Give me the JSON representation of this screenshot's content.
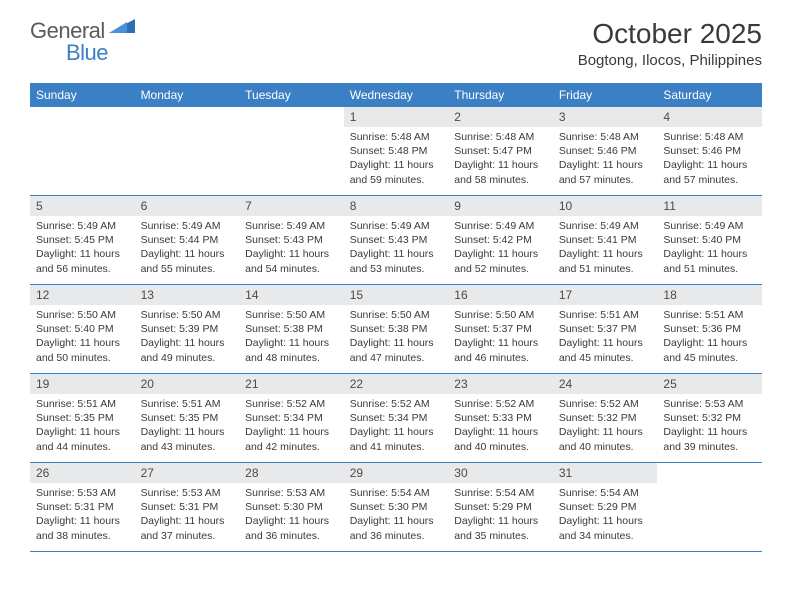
{
  "brand": {
    "part1": "General",
    "part2": "Blue"
  },
  "title": "October 2025",
  "location": "Bogtong, Ilocos, Philippines",
  "weekdays": [
    "Sunday",
    "Monday",
    "Tuesday",
    "Wednesday",
    "Thursday",
    "Friday",
    "Saturday"
  ],
  "colors": {
    "header_bg": "#3b7fc4",
    "header_text": "#ffffff",
    "daynum_bg": "#e8e9ea",
    "text": "#3a3a3a",
    "logo_gray": "#5a5a5a"
  },
  "weeks": [
    [
      null,
      null,
      null,
      {
        "n": "1",
        "sr": "5:48 AM",
        "ss": "5:48 PM",
        "dl": "11 hours and 59 minutes."
      },
      {
        "n": "2",
        "sr": "5:48 AM",
        "ss": "5:47 PM",
        "dl": "11 hours and 58 minutes."
      },
      {
        "n": "3",
        "sr": "5:48 AM",
        "ss": "5:46 PM",
        "dl": "11 hours and 57 minutes."
      },
      {
        "n": "4",
        "sr": "5:48 AM",
        "ss": "5:46 PM",
        "dl": "11 hours and 57 minutes."
      }
    ],
    [
      {
        "n": "5",
        "sr": "5:49 AM",
        "ss": "5:45 PM",
        "dl": "11 hours and 56 minutes."
      },
      {
        "n": "6",
        "sr": "5:49 AM",
        "ss": "5:44 PM",
        "dl": "11 hours and 55 minutes."
      },
      {
        "n": "7",
        "sr": "5:49 AM",
        "ss": "5:43 PM",
        "dl": "11 hours and 54 minutes."
      },
      {
        "n": "8",
        "sr": "5:49 AM",
        "ss": "5:43 PM",
        "dl": "11 hours and 53 minutes."
      },
      {
        "n": "9",
        "sr": "5:49 AM",
        "ss": "5:42 PM",
        "dl": "11 hours and 52 minutes."
      },
      {
        "n": "10",
        "sr": "5:49 AM",
        "ss": "5:41 PM",
        "dl": "11 hours and 51 minutes."
      },
      {
        "n": "11",
        "sr": "5:49 AM",
        "ss": "5:40 PM",
        "dl": "11 hours and 51 minutes."
      }
    ],
    [
      {
        "n": "12",
        "sr": "5:50 AM",
        "ss": "5:40 PM",
        "dl": "11 hours and 50 minutes."
      },
      {
        "n": "13",
        "sr": "5:50 AM",
        "ss": "5:39 PM",
        "dl": "11 hours and 49 minutes."
      },
      {
        "n": "14",
        "sr": "5:50 AM",
        "ss": "5:38 PM",
        "dl": "11 hours and 48 minutes."
      },
      {
        "n": "15",
        "sr": "5:50 AM",
        "ss": "5:38 PM",
        "dl": "11 hours and 47 minutes."
      },
      {
        "n": "16",
        "sr": "5:50 AM",
        "ss": "5:37 PM",
        "dl": "11 hours and 46 minutes."
      },
      {
        "n": "17",
        "sr": "5:51 AM",
        "ss": "5:37 PM",
        "dl": "11 hours and 45 minutes."
      },
      {
        "n": "18",
        "sr": "5:51 AM",
        "ss": "5:36 PM",
        "dl": "11 hours and 45 minutes."
      }
    ],
    [
      {
        "n": "19",
        "sr": "5:51 AM",
        "ss": "5:35 PM",
        "dl": "11 hours and 44 minutes."
      },
      {
        "n": "20",
        "sr": "5:51 AM",
        "ss": "5:35 PM",
        "dl": "11 hours and 43 minutes."
      },
      {
        "n": "21",
        "sr": "5:52 AM",
        "ss": "5:34 PM",
        "dl": "11 hours and 42 minutes."
      },
      {
        "n": "22",
        "sr": "5:52 AM",
        "ss": "5:34 PM",
        "dl": "11 hours and 41 minutes."
      },
      {
        "n": "23",
        "sr": "5:52 AM",
        "ss": "5:33 PM",
        "dl": "11 hours and 40 minutes."
      },
      {
        "n": "24",
        "sr": "5:52 AM",
        "ss": "5:32 PM",
        "dl": "11 hours and 40 minutes."
      },
      {
        "n": "25",
        "sr": "5:53 AM",
        "ss": "5:32 PM",
        "dl": "11 hours and 39 minutes."
      }
    ],
    [
      {
        "n": "26",
        "sr": "5:53 AM",
        "ss": "5:31 PM",
        "dl": "11 hours and 38 minutes."
      },
      {
        "n": "27",
        "sr": "5:53 AM",
        "ss": "5:31 PM",
        "dl": "11 hours and 37 minutes."
      },
      {
        "n": "28",
        "sr": "5:53 AM",
        "ss": "5:30 PM",
        "dl": "11 hours and 36 minutes."
      },
      {
        "n": "29",
        "sr": "5:54 AM",
        "ss": "5:30 PM",
        "dl": "11 hours and 36 minutes."
      },
      {
        "n": "30",
        "sr": "5:54 AM",
        "ss": "5:29 PM",
        "dl": "11 hours and 35 minutes."
      },
      {
        "n": "31",
        "sr": "5:54 AM",
        "ss": "5:29 PM",
        "dl": "11 hours and 34 minutes."
      },
      null
    ]
  ],
  "labels": {
    "sunrise": "Sunrise:",
    "sunset": "Sunset:",
    "daylight": "Daylight:"
  }
}
